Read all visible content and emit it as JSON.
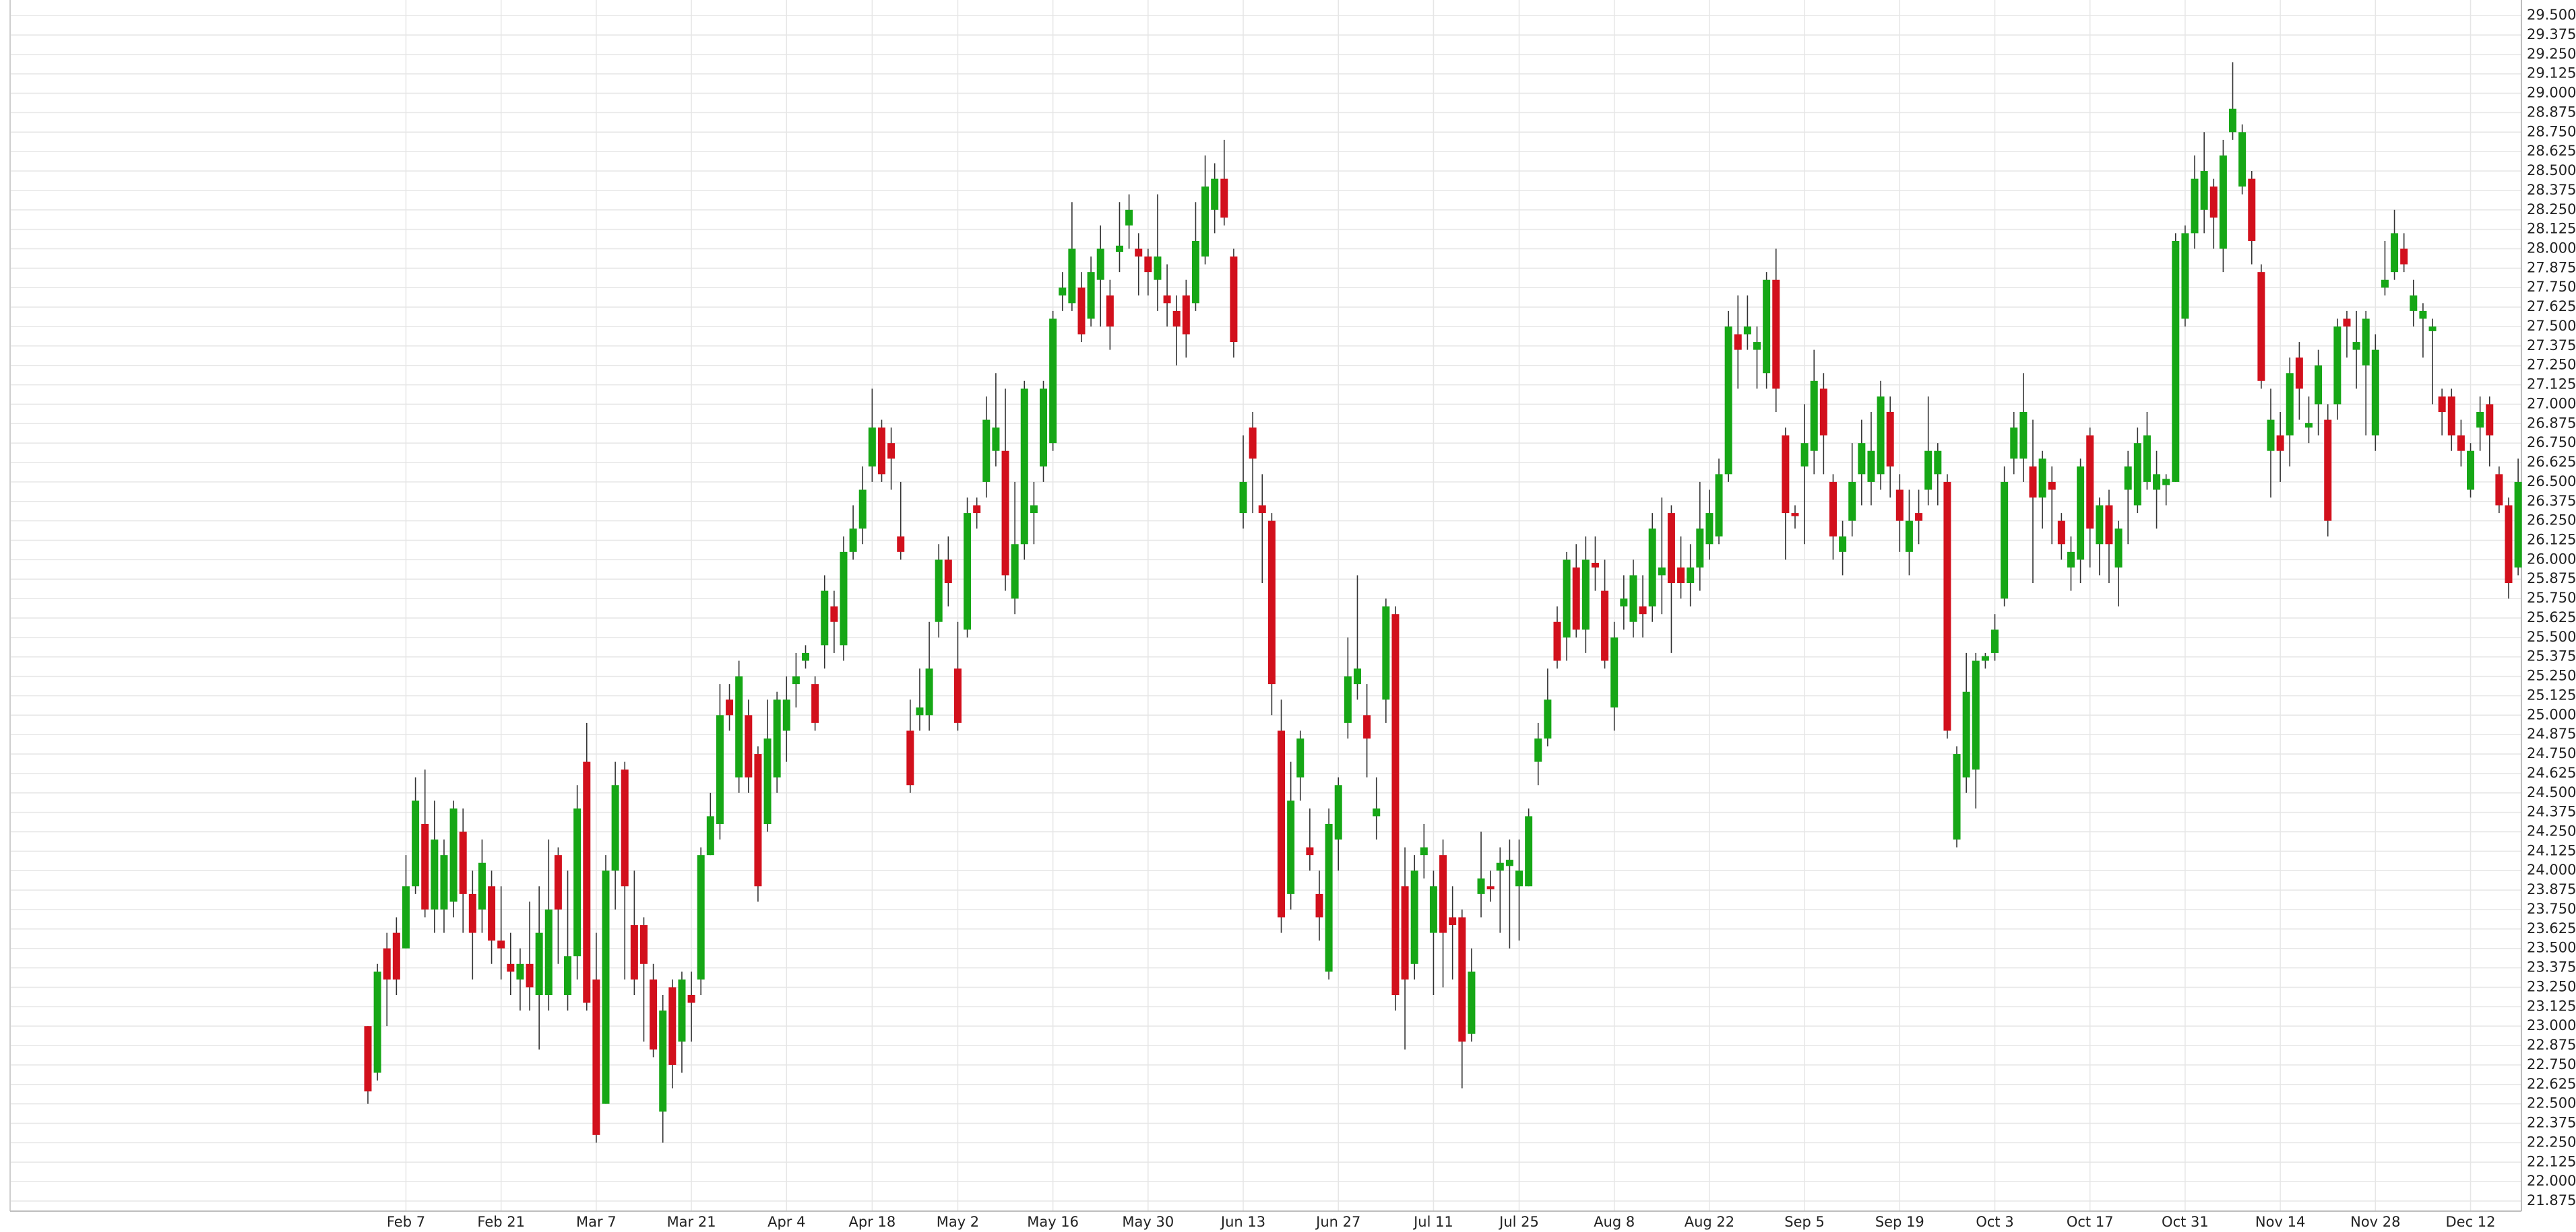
{
  "chart_data": {
    "type": "candlestick",
    "categories": [
      null,
      null,
      null,
      null,
      "Feb 7",
      null,
      null,
      null,
      null,
      null,
      null,
      null,
      null,
      null,
      "Feb 21",
      null,
      null,
      null,
      null,
      null,
      null,
      null,
      null,
      null,
      "Mar 7",
      null,
      null,
      null,
      null,
      null,
      null,
      null,
      null,
      null,
      "Mar 21",
      null,
      null,
      null,
      null,
      null,
      null,
      null,
      null,
      null,
      "Apr 4",
      null,
      null,
      null,
      null,
      null,
      null,
      null,
      null,
      "Apr 18",
      null,
      null,
      null,
      null,
      null,
      null,
      null,
      null,
      "May 2",
      null,
      null,
      null,
      null,
      null,
      null,
      null,
      null,
      null,
      "May 16",
      null,
      null,
      null,
      null,
      null,
      null,
      null,
      null,
      null,
      "May 30",
      null,
      null,
      null,
      null,
      null,
      null,
      null,
      null,
      null,
      "Jun 13",
      null,
      null,
      null,
      null,
      null,
      null,
      null,
      null,
      null,
      "Jun 27",
      null,
      null,
      null,
      null,
      null,
      null,
      null,
      null,
      null,
      "Jul 11",
      null,
      null,
      null,
      null,
      null,
      null,
      null,
      null,
      "Jul 25",
      null,
      null,
      null,
      null,
      null,
      null,
      null,
      null,
      null,
      "Aug 8",
      null,
      null,
      null,
      null,
      null,
      null,
      null,
      null,
      null,
      "Aug 22",
      null,
      null,
      null,
      null,
      null,
      null,
      null,
      null,
      null,
      "Sep 5",
      null,
      null,
      null,
      null,
      null,
      null,
      null,
      null,
      null,
      "Sep 19",
      null,
      null,
      null,
      null,
      null,
      null,
      null,
      null,
      null,
      "Oct 3",
      null,
      null,
      null,
      null,
      null,
      null,
      null,
      null,
      null,
      "Oct 17",
      null,
      null,
      null,
      null,
      null,
      null,
      null,
      null,
      null,
      "Oct 31",
      null,
      null,
      null,
      null,
      null,
      null,
      null,
      null,
      null,
      "Nov 14",
      null,
      null,
      null,
      null,
      null,
      null,
      null,
      null,
      null,
      "Nov 28",
      null,
      null,
      null,
      null,
      null,
      null,
      null,
      null,
      null,
      "Dec 12",
      null,
      null,
      null,
      null,
      null
    ],
    "open": [
      23.0,
      22.7,
      23.5,
      23.6,
      23.5,
      23.9,
      24.3,
      23.75,
      23.75,
      23.8,
      24.25,
      23.85,
      23.75,
      23.9,
      23.55,
      23.4,
      23.3,
      23.4,
      23.2,
      23.2,
      24.1,
      23.2,
      23.45,
      24.7,
      23.3,
      22.5,
      24.0,
      24.65,
      23.65,
      23.65,
      23.3,
      22.45,
      23.25,
      22.9,
      23.2,
      23.3,
      24.1,
      24.3,
      25.1,
      24.6,
      25.0,
      24.75,
      24.3,
      24.6,
      24.9,
      25.2,
      25.35,
      25.2,
      25.45,
      25.7,
      25.45,
      26.05,
      26.2,
      26.6,
      26.85,
      26.75,
      26.15,
      24.9,
      25.0,
      25.0,
      25.6,
      26.0,
      25.3,
      25.55,
      26.35,
      26.5,
      26.7,
      26.7,
      25.75,
      26.1,
      26.3,
      26.6,
      26.75,
      27.7,
      27.65,
      27.75,
      27.55,
      27.8,
      27.7,
      27.98,
      28.15,
      28.0,
      27.95,
      27.8,
      27.7,
      27.6,
      27.7,
      27.65,
      27.95,
      28.25,
      28.45,
      27.95,
      26.3,
      26.85,
      26.35,
      26.25,
      24.9,
      23.85,
      24.6,
      24.15,
      23.85,
      23.35,
      24.2,
      24.95,
      25.2,
      25.0,
      24.35,
      25.1,
      25.65,
      23.9,
      23.4,
      24.1,
      23.6,
      24.1,
      23.7,
      23.7,
      22.95,
      23.85,
      23.9,
      24.0,
      24.03,
      23.9,
      23.9,
      24.7,
      24.85,
      25.6,
      25.5,
      25.95,
      25.55,
      25.98,
      25.8,
      25.05,
      25.7,
      25.6,
      25.7,
      25.7,
      25.9,
      26.3,
      25.95,
      25.85,
      25.95,
      26.1,
      26.15,
      26.55,
      27.45,
      27.45,
      27.35,
      27.2,
      27.8,
      26.8,
      26.3,
      26.6,
      26.7,
      27.1,
      26.5,
      26.05,
      26.25,
      26.55,
      26.5,
      26.55,
      26.95,
      26.45,
      26.05,
      26.3,
      26.45,
      26.55,
      26.5,
      24.2,
      24.6,
      24.65,
      25.35,
      25.4,
      25.75,
      26.65,
      26.65,
      26.6,
      26.4,
      26.5,
      26.25,
      25.95,
      26.0,
      26.8,
      26.1,
      26.35,
      25.95,
      26.45,
      26.35,
      26.5,
      26.45,
      26.48,
      26.5,
      27.55,
      28.1,
      28.25,
      28.4,
      28.0,
      28.75,
      28.4,
      28.45,
      27.85,
      26.7,
      26.8,
      26.8,
      27.3,
      26.85,
      27.0,
      26.9,
      27.0,
      27.55,
      27.35,
      27.25,
      26.8,
      27.75,
      27.85,
      28.0,
      27.6,
      27.55,
      27.47,
      27.05,
      27.05,
      26.8,
      26.45,
      26.85,
      27.0,
      26.55,
      26.35,
      25.95
    ],
    "high": [
      23.0,
      23.4,
      23.6,
      23.7,
      24.1,
      24.6,
      24.65,
      24.45,
      24.2,
      24.45,
      24.4,
      24.0,
      24.2,
      24.0,
      23.9,
      23.6,
      23.5,
      23.8,
      23.9,
      24.2,
      24.15,
      24.0,
      24.55,
      24.95,
      23.6,
      24.1,
      24.7,
      24.7,
      24.0,
      23.7,
      23.4,
      23.2,
      23.3,
      23.35,
      23.35,
      24.15,
      24.5,
      25.2,
      25.2,
      25.35,
      25.1,
      24.8,
      25.1,
      25.15,
      25.25,
      25.4,
      25.45,
      25.25,
      25.9,
      25.8,
      26.15,
      26.35,
      26.6,
      27.1,
      26.9,
      26.85,
      26.5,
      25.1,
      25.3,
      25.6,
      26.1,
      26.15,
      25.6,
      26.4,
      26.4,
      27.05,
      27.2,
      27.1,
      26.5,
      27.15,
      26.5,
      27.15,
      27.6,
      27.85,
      28.3,
      27.85,
      27.95,
      28.15,
      27.8,
      28.3,
      28.35,
      28.1,
      28.0,
      28.35,
      27.9,
      27.7,
      27.8,
      28.3,
      28.6,
      28.55,
      28.7,
      28.0,
      26.8,
      26.95,
      26.55,
      26.3,
      25.1,
      24.7,
      24.9,
      24.4,
      24.0,
      24.4,
      24.6,
      25.5,
      25.9,
      25.2,
      24.6,
      25.75,
      25.7,
      24.15,
      24.1,
      24.3,
      24.0,
      24.2,
      23.9,
      23.75,
      23.5,
      24.25,
      24.0,
      24.15,
      24.2,
      24.2,
      24.4,
      24.95,
      25.3,
      25.7,
      26.05,
      26.1,
      26.15,
      26.15,
      26.0,
      25.6,
      25.9,
      26.0,
      25.9,
      26.3,
      26.4,
      26.35,
      26.15,
      26.1,
      26.5,
      26.45,
      26.65,
      27.6,
      27.7,
      27.7,
      27.5,
      27.85,
      28.0,
      26.85,
      26.35,
      27.0,
      27.35,
      27.2,
      26.55,
      26.25,
      26.75,
      26.9,
      26.95,
      27.15,
      27.05,
      26.55,
      26.45,
      26.45,
      27.05,
      26.75,
      26.55,
      24.8,
      25.4,
      25.4,
      25.4,
      25.65,
      26.6,
      26.95,
      27.2,
      26.9,
      26.7,
      26.6,
      26.3,
      26.15,
      26.65,
      26.85,
      26.4,
      26.45,
      26.25,
      26.7,
      26.85,
      26.95,
      26.7,
      26.55,
      28.1,
      28.15,
      28.6,
      28.75,
      28.45,
      28.7,
      29.2,
      28.8,
      28.5,
      27.9,
      27.1,
      26.95,
      27.3,
      27.4,
      27.05,
      27.35,
      27.0,
      27.55,
      27.6,
      27.6,
      27.6,
      27.45,
      28.05,
      28.25,
      28.1,
      27.8,
      27.65,
      27.55,
      27.1,
      27.1,
      26.9,
      26.75,
      27.05,
      27.05,
      26.6,
      26.4,
      26.65
    ],
    "low": [
      22.5,
      22.65,
      23.0,
      23.2,
      23.5,
      23.85,
      23.7,
      23.6,
      23.6,
      23.7,
      23.6,
      23.3,
      23.6,
      23.4,
      23.3,
      23.2,
      23.1,
      23.1,
      22.85,
      23.1,
      23.4,
      23.1,
      23.3,
      23.1,
      22.25,
      22.5,
      23.75,
      23.3,
      23.2,
      22.9,
      22.8,
      22.25,
      22.6,
      22.7,
      22.9,
      23.2,
      24.1,
      24.2,
      24.9,
      24.5,
      24.5,
      23.8,
      24.25,
      24.5,
      24.7,
      25.05,
      25.3,
      24.9,
      25.3,
      25.4,
      25.35,
      26.0,
      26.1,
      26.5,
      26.5,
      26.45,
      26.0,
      24.5,
      24.9,
      24.9,
      25.5,
      25.7,
      24.9,
      25.5,
      26.2,
      26.4,
      26.6,
      25.8,
      25.65,
      26.0,
      26.1,
      26.5,
      26.7,
      27.6,
      27.6,
      27.4,
      27.5,
      27.5,
      27.35,
      27.85,
      28.0,
      27.7,
      27.7,
      27.6,
      27.5,
      27.25,
      27.3,
      27.6,
      27.9,
      28.1,
      28.15,
      27.3,
      26.2,
      26.3,
      25.85,
      25.0,
      23.6,
      23.75,
      24.45,
      24.0,
      23.55,
      23.3,
      24.0,
      24.85,
      25.1,
      24.6,
      24.2,
      24.95,
      23.1,
      22.85,
      23.3,
      23.95,
      23.2,
      23.25,
      23.3,
      22.6,
      22.9,
      23.7,
      23.8,
      23.6,
      23.5,
      23.55,
      23.9,
      24.55,
      24.8,
      25.3,
      25.35,
      25.5,
      25.4,
      25.8,
      25.3,
      24.9,
      25.55,
      25.5,
      25.5,
      25.6,
      25.65,
      25.4,
      25.75,
      25.7,
      25.8,
      26.0,
      26.1,
      26.5,
      27.1,
      27.35,
      27.1,
      27.1,
      26.95,
      26.0,
      26.2,
      26.1,
      26.55,
      26.55,
      26.0,
      25.9,
      26.15,
      26.35,
      26.35,
      26.45,
      26.4,
      26.05,
      25.9,
      26.1,
      26.35,
      26.35,
      24.85,
      24.15,
      24.5,
      24.4,
      25.3,
      25.35,
      25.7,
      26.55,
      26.5,
      25.85,
      26.2,
      26.1,
      26.0,
      25.8,
      25.85,
      25.95,
      25.9,
      25.85,
      25.7,
      26.1,
      26.3,
      26.45,
      26.2,
      26.35,
      26.5,
      27.5,
      28.0,
      28.1,
      28.0,
      27.85,
      28.7,
      28.35,
      27.9,
      27.1,
      26.4,
      26.5,
      26.6,
      26.9,
      26.75,
      26.8,
      26.15,
      26.9,
      27.3,
      27.1,
      26.8,
      26.7,
      27.7,
      27.8,
      27.85,
      27.5,
      27.3,
      27.0,
      26.8,
      26.7,
      26.6,
      26.4,
      26.7,
      26.6,
      26.3,
      25.75,
      25.9
    ],
    "close": [
      22.58,
      23.35,
      23.3,
      23.3,
      23.9,
      24.45,
      23.75,
      24.2,
      24.1,
      24.4,
      23.85,
      23.6,
      24.05,
      23.55,
      23.5,
      23.35,
      23.4,
      23.25,
      23.6,
      23.75,
      23.75,
      23.45,
      24.4,
      23.15,
      22.3,
      24.0,
      24.55,
      23.9,
      23.3,
      23.4,
      22.85,
      23.1,
      22.75,
      23.3,
      23.15,
      24.1,
      24.35,
      25.0,
      25.0,
      25.25,
      24.6,
      23.9,
      24.85,
      25.1,
      25.1,
      25.25,
      25.4,
      24.95,
      25.8,
      25.6,
      26.05,
      26.2,
      26.45,
      26.85,
      26.55,
      26.65,
      26.05,
      24.55,
      25.05,
      25.3,
      26.0,
      25.85,
      24.95,
      26.3,
      26.3,
      26.9,
      26.85,
      25.9,
      26.1,
      27.1,
      26.35,
      27.1,
      27.55,
      27.75,
      28.0,
      27.45,
      27.85,
      28.0,
      27.5,
      28.02,
      28.25,
      27.95,
      27.85,
      27.95,
      27.65,
      27.5,
      27.45,
      28.05,
      28.4,
      28.45,
      28.2,
      27.4,
      26.5,
      26.65,
      26.3,
      25.2,
      23.7,
      24.45,
      24.85,
      24.1,
      23.7,
      24.3,
      24.55,
      25.25,
      25.3,
      24.85,
      24.4,
      25.7,
      23.2,
      23.3,
      24.0,
      24.15,
      23.9,
      23.6,
      23.65,
      22.9,
      23.35,
      23.95,
      23.88,
      24.05,
      24.07,
      24.0,
      24.35,
      24.85,
      25.1,
      25.35,
      26.0,
      25.55,
      26.0,
      25.95,
      25.35,
      25.5,
      25.75,
      25.9,
      25.65,
      26.2,
      25.95,
      25.85,
      25.85,
      25.95,
      26.2,
      26.3,
      26.55,
      27.5,
      27.35,
      27.5,
      27.4,
      27.8,
      27.1,
      26.3,
      26.28,
      26.75,
      27.15,
      26.8,
      26.15,
      26.15,
      26.5,
      26.75,
      26.7,
      27.05,
      26.6,
      26.25,
      26.25,
      26.25,
      26.7,
      26.7,
      24.9,
      24.75,
      25.15,
      25.35,
      25.38,
      25.55,
      26.5,
      26.85,
      26.95,
      26.4,
      26.65,
      26.45,
      26.1,
      26.05,
      26.6,
      26.2,
      26.35,
      26.1,
      26.2,
      26.6,
      26.75,
      26.8,
      26.55,
      26.52,
      28.05,
      28.1,
      28.45,
      28.5,
      28.2,
      28.6,
      28.9,
      28.75,
      28.05,
      27.15,
      26.9,
      26.7,
      27.2,
      27.1,
      26.88,
      27.25,
      26.25,
      27.5,
      27.5,
      27.4,
      27.55,
      27.35,
      27.8,
      28.1,
      27.9,
      27.7,
      27.6,
      27.5,
      26.95,
      26.8,
      26.7,
      26.7,
      26.95,
      26.8,
      26.35,
      25.85,
      26.5
    ],
    "up_color": "#16a716",
    "down_color": "#d2101c",
    "ylim": [
      21.81,
      29.6
    ],
    "yticks": [
      21.875,
      {
        "value": 22,
        "label": "22.000"
      },
      22.125,
      {
        "value": 22.25,
        "label": "22.250"
      },
      22.375,
      {
        "value": 22.5,
        "label": "22.500"
      },
      22.625,
      {
        "value": 22.75,
        "label": "22.750"
      },
      22.875,
      {
        "value": 23,
        "label": "23.000"
      },
      23.125,
      {
        "value": 23.25,
        "label": "23.250"
      },
      23.375,
      {
        "value": 23.5,
        "label": "23.500"
      },
      23.625,
      {
        "value": 23.75,
        "label": "23.750"
      },
      23.875,
      {
        "value": 24,
        "label": "24.000"
      },
      24.125,
      {
        "value": 24.25,
        "label": "24.250"
      },
      24.375,
      {
        "value": 24.5,
        "label": "24.500"
      },
      24.625,
      {
        "value": 24.75,
        "label": "24.750"
      },
      24.875,
      {
        "value": 25,
        "label": "25.000"
      },
      25.125,
      {
        "value": 25.25,
        "label": "25.250"
      },
      25.375,
      {
        "value": 25.5,
        "label": "25.500"
      },
      25.625,
      {
        "value": 25.75,
        "label": "25.750"
      },
      25.875,
      {
        "value": 26,
        "label": "26.000"
      },
      26.125,
      {
        "value": 26.25,
        "label": "26.250"
      },
      26.375,
      {
        "value": 26.5,
        "label": "26.500"
      },
      26.625,
      {
        "value": 26.75,
        "label": "26.750"
      },
      26.875,
      {
        "value": 27,
        "label": "27.000"
      },
      27.125,
      {
        "value": 27.25,
        "label": "27.250"
      },
      27.375,
      {
        "value": 27.5,
        "label": "27.500"
      },
      27.625,
      {
        "value": 27.75,
        "label": "27.750"
      },
      27.875,
      {
        "value": 28,
        "label": "28.000"
      },
      28.125,
      {
        "value": 28.25,
        "label": "28.250"
      },
      28.375,
      {
        "value": 28.5,
        "label": "28.500"
      },
      28.625,
      {
        "value": 28.75,
        "label": "28.750"
      },
      28.875,
      {
        "value": 29,
        "label": "29.000"
      },
      29.125,
      {
        "value": 29.25,
        "label": "29.250"
      },
      29.375,
      {
        "value": 29.5,
        "label": "29.500"
      }
    ],
    "grid": true
  }
}
